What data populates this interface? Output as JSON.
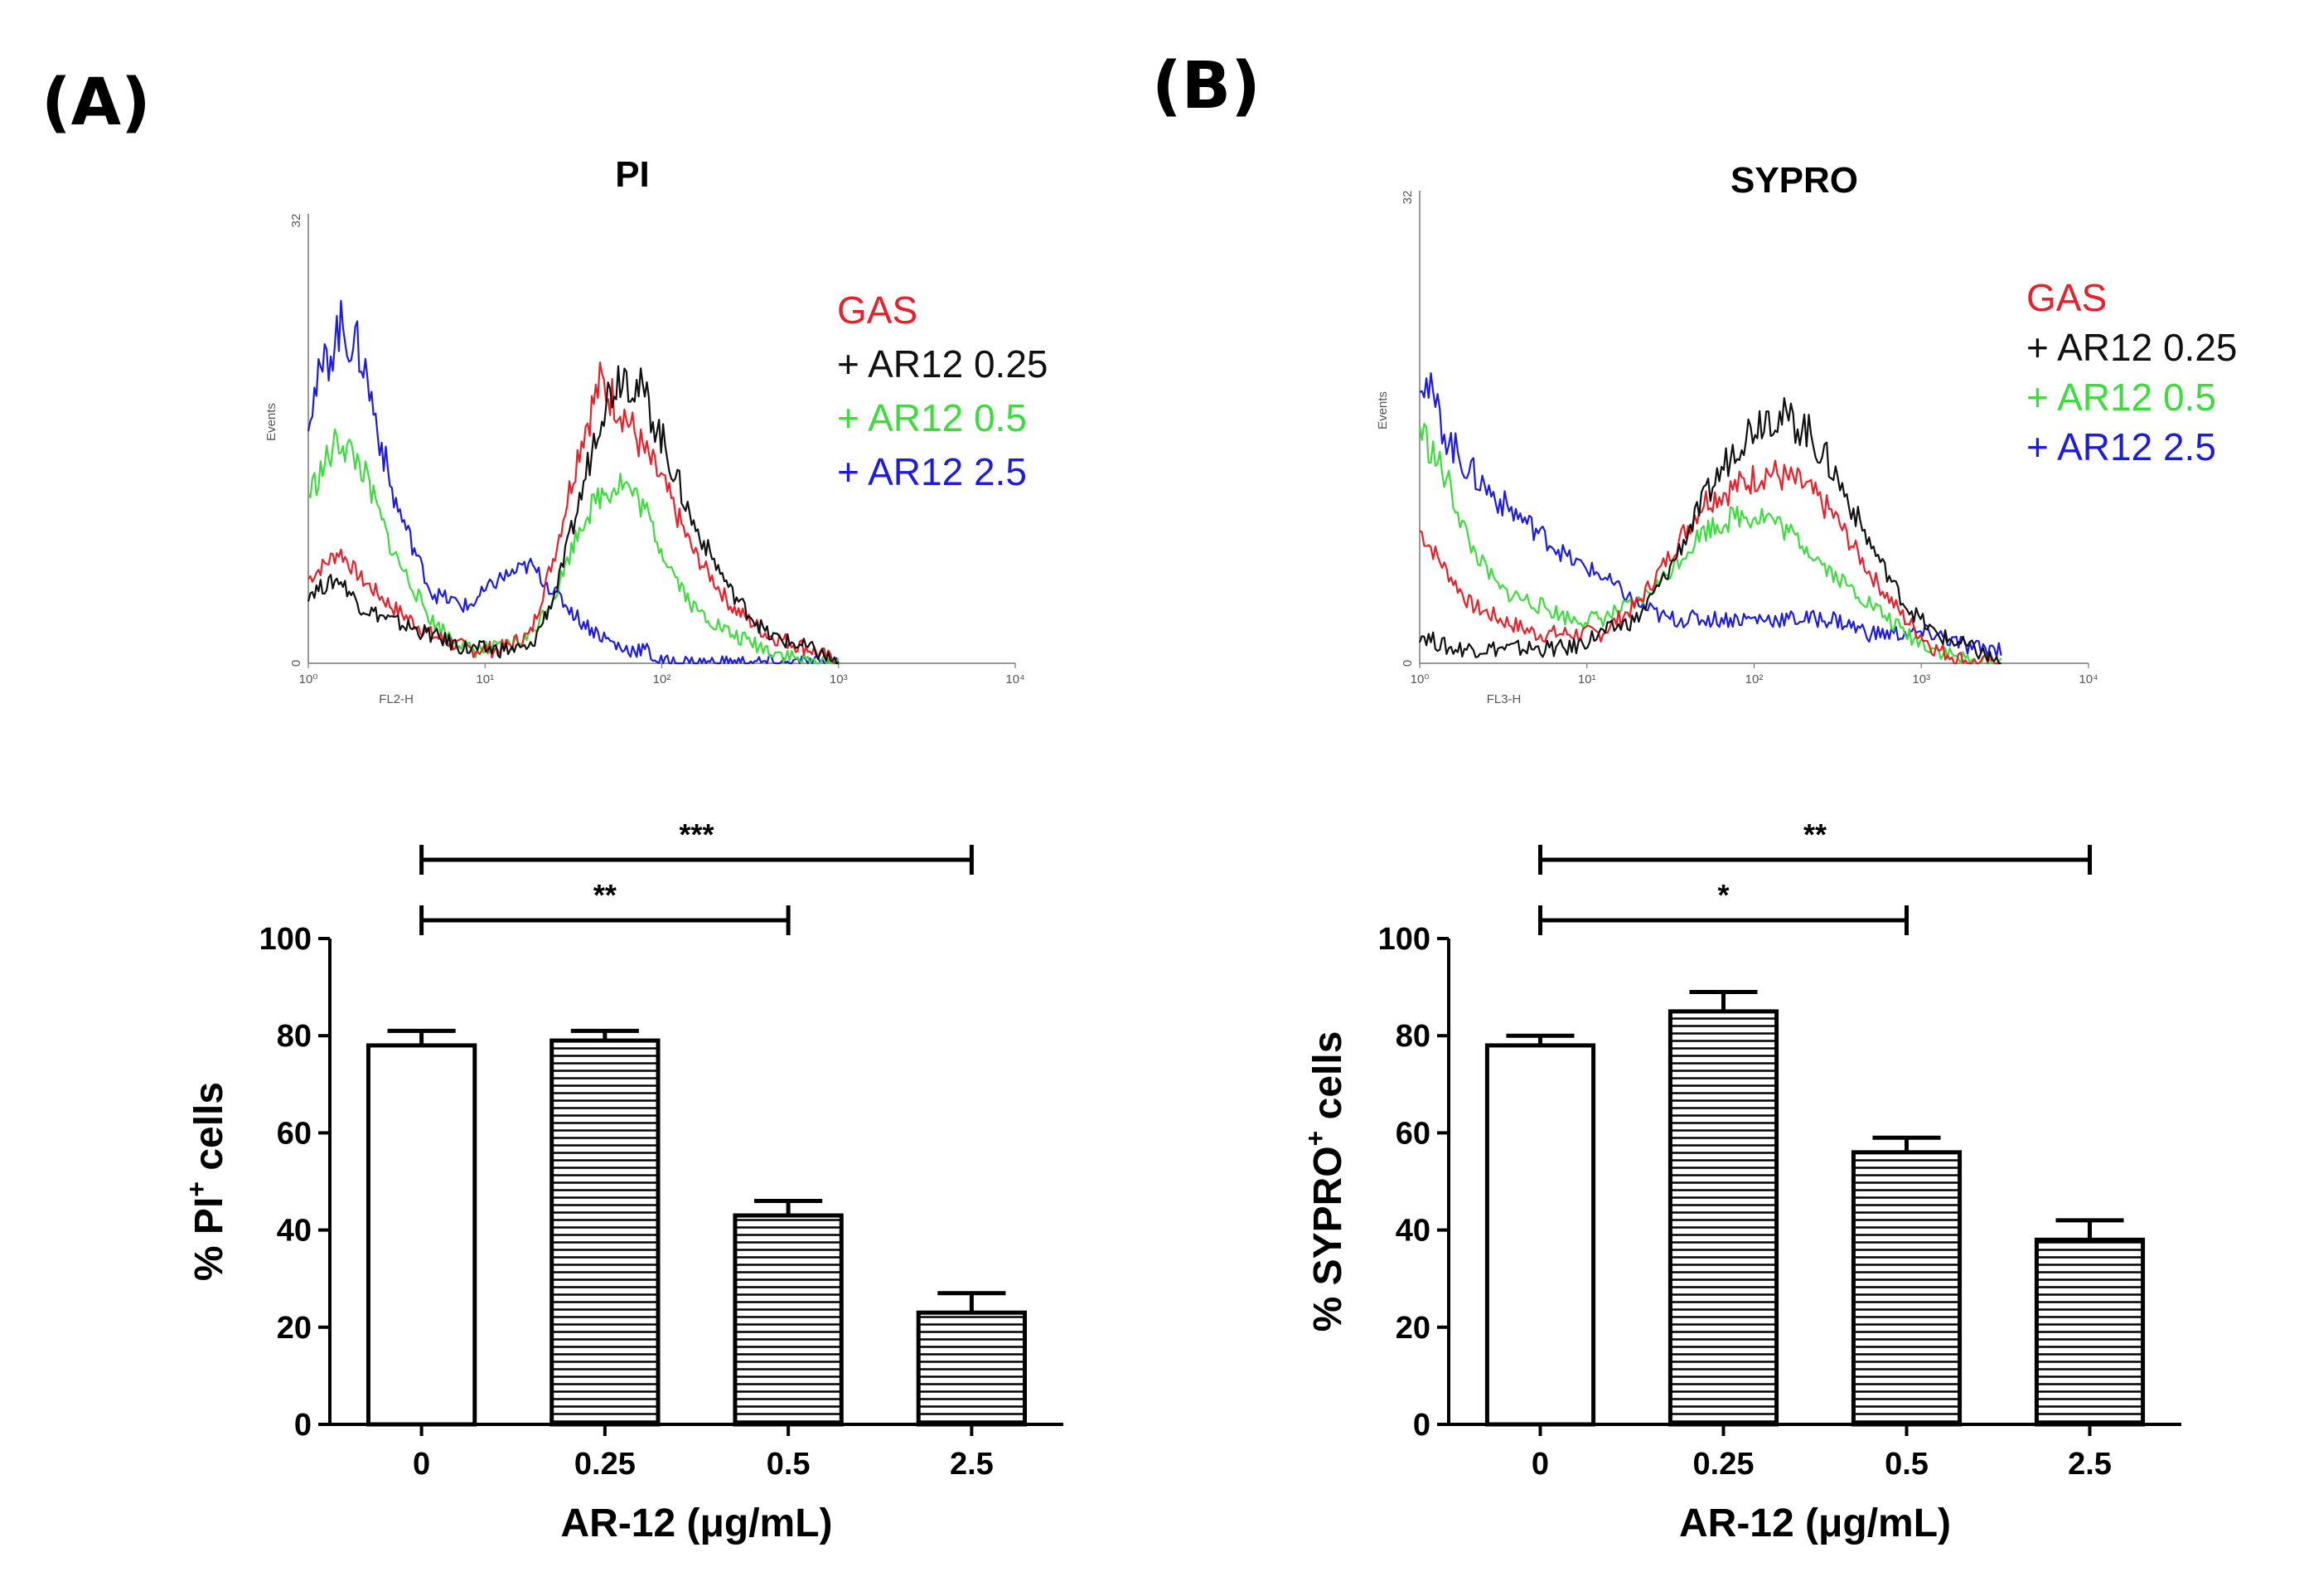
{
  "figure": {
    "panels": [
      {
        "label": "(A)",
        "histogram": {
          "title": "PI",
          "xlabel": "FL2-H",
          "ylabel": "Events",
          "y_top_tick": "32",
          "y_bottom_tick": "0",
          "x_ticks": [
            "10⁰",
            "10¹",
            "10²",
            "10³",
            "10⁴"
          ],
          "legend": [
            {
              "text": "GAS",
              "color": "#e8202a"
            },
            {
              "text": "+ AR12 0.25",
              "color": "#111111"
            },
            {
              "text": "+ AR12 0.5",
              "color": "#3ddc3d"
            },
            {
              "text": "+ AR12 2.5",
              "color": "#1c1ce0"
            }
          ]
        },
        "bar_chart": {
          "ylabel_prefix": "% PI",
          "ylabel_sup": "+",
          "ylabel_suffix": " cells",
          "xlabel": "AR-12 (μg/mL)",
          "significance": [
            {
              "from": 0,
              "to": 3,
              "label": "***"
            },
            {
              "from": 0,
              "to": 2,
              "label": "**"
            }
          ]
        }
      },
      {
        "label": "(B)",
        "histogram": {
          "title": "SYPRO",
          "xlabel": "FL3-H",
          "ylabel": "Events",
          "y_top_tick": "32",
          "y_bottom_tick": "0",
          "x_ticks": [
            "10⁰",
            "10¹",
            "10²",
            "10³",
            "10⁴"
          ],
          "legend": [
            {
              "text": "GAS",
              "color": "#e8202a"
            },
            {
              "text": "+ AR12 0.25",
              "color": "#111111"
            },
            {
              "text": "+ AR12 0.5",
              "color": "#3ddc3d"
            },
            {
              "text": "+ AR12 2.5",
              "color": "#1c1ce0"
            }
          ]
        },
        "bar_chart": {
          "ylabel_prefix": "% SYPRO",
          "ylabel_sup": "+",
          "ylabel_suffix": " cells",
          "xlabel": "AR-12 (μg/mL)",
          "significance": [
            {
              "from": 0,
              "to": 3,
              "label": "**"
            },
            {
              "from": 0,
              "to": 2,
              "label": "*"
            }
          ]
        }
      }
    ]
  },
  "chart_data": [
    {
      "type": "area",
      "title": "PI",
      "xlabel": "FL2-H",
      "ylabel": "Events",
      "x_scale": "log",
      "xlim": [
        1,
        10000
      ],
      "ylim": [
        0,
        32
      ],
      "series": [
        {
          "name": "GAS",
          "color": "#e8202a",
          "x": [
            1,
            1.5,
            2,
            3,
            5,
            8,
            12,
            18,
            25,
            35,
            45,
            60,
            80,
            100,
            150,
            250,
            400,
            700,
            1000
          ],
          "values": [
            6,
            8,
            6,
            4,
            2,
            1,
            1,
            2,
            8,
            16,
            20,
            18,
            15,
            13,
            8,
            4,
            2,
            1,
            0
          ]
        },
        {
          "name": "+ AR12 0.25",
          "color": "#111111",
          "x": [
            1,
            1.5,
            2,
            3,
            5,
            8,
            12,
            18,
            25,
            35,
            45,
            60,
            80,
            100,
            150,
            250,
            400,
            700,
            1000
          ],
          "values": [
            5,
            6,
            4,
            3,
            2,
            1,
            1,
            1,
            5,
            12,
            18,
            21,
            19,
            16,
            10,
            5,
            2,
            1,
            0
          ]
        },
        {
          "name": "+ AR12 0.5",
          "color": "#3ddc3d",
          "x": [
            1,
            1.5,
            2,
            3,
            5,
            8,
            12,
            18,
            25,
            35,
            45,
            60,
            80,
            100,
            150,
            250,
            400,
            700,
            1000
          ],
          "values": [
            12,
            16,
            14,
            8,
            3,
            1,
            1,
            2,
            5,
            10,
            12,
            13,
            11,
            8,
            4,
            2,
            1,
            0,
            0
          ]
        },
        {
          "name": "+ AR12 2.5",
          "color": "#1c1ce0",
          "x": [
            1,
            1.5,
            2,
            3,
            5,
            8,
            12,
            18,
            25,
            35,
            45,
            60,
            80,
            100,
            150,
            250,
            400,
            700,
            1000
          ],
          "values": [
            18,
            24,
            22,
            12,
            5,
            4,
            6,
            7,
            5,
            3,
            2,
            1,
            1,
            0,
            0,
            0,
            0,
            0,
            0
          ]
        }
      ]
    },
    {
      "type": "area",
      "title": "SYPRO",
      "xlabel": "FL3-H",
      "ylabel": "Events",
      "x_scale": "log",
      "xlim": [
        1,
        10000
      ],
      "ylim": [
        0,
        32
      ],
      "series": [
        {
          "name": "GAS",
          "color": "#e8202a",
          "x": [
            1,
            1.5,
            2,
            3,
            5,
            8,
            12,
            20,
            30,
            50,
            80,
            120,
            200,
            300,
            500,
            800,
            1200,
            2000,
            3000
          ],
          "values": [
            9,
            6,
            4,
            3,
            2,
            2,
            2,
            4,
            7,
            11,
            12,
            13,
            12,
            10,
            6,
            3,
            1,
            0,
            0
          ]
        },
        {
          "name": "+ AR12 0.25",
          "color": "#111111",
          "x": [
            1,
            1.5,
            2,
            3,
            5,
            8,
            12,
            20,
            30,
            50,
            80,
            120,
            200,
            300,
            500,
            800,
            1200,
            2000,
            3000
          ],
          "values": [
            2,
            1,
            1,
            1,
            1,
            1,
            2,
            3,
            6,
            11,
            15,
            17,
            16,
            13,
            8,
            4,
            2,
            1,
            0
          ]
        },
        {
          "name": "+ AR12 0.5",
          "color": "#3ddc3d",
          "x": [
            1,
            1.5,
            2,
            3,
            5,
            8,
            12,
            20,
            30,
            50,
            80,
            120,
            200,
            300,
            500,
            800,
            1200,
            2000,
            3000
          ],
          "values": [
            16,
            12,
            8,
            5,
            4,
            3,
            3,
            4,
            6,
            9,
            10,
            10,
            8,
            6,
            4,
            2,
            1,
            0,
            0
          ]
        },
        {
          "name": "+ AR12 2.5",
          "color": "#1c1ce0",
          "x": [
            1,
            1.5,
            2,
            3,
            5,
            8,
            12,
            20,
            30,
            50,
            80,
            120,
            200,
            300,
            500,
            800,
            1200,
            2000,
            3000
          ],
          "values": [
            20,
            15,
            13,
            11,
            9,
            7,
            6,
            4,
            3,
            3,
            3,
            3,
            3,
            3,
            2,
            2,
            2,
            1,
            1
          ]
        }
      ]
    },
    {
      "type": "bar",
      "categories": [
        "0",
        "0.25",
        "0.5",
        "2.5"
      ],
      "values": [
        78,
        79,
        43,
        23
      ],
      "errors": [
        3,
        2,
        3,
        4
      ],
      "patterns": [
        "open",
        "hatched",
        "hatched",
        "hatched"
      ],
      "xlabel": "AR-12 (μg/mL)",
      "ylabel": "% PI+ cells",
      "ylim": [
        0,
        100
      ],
      "yticks": [
        0,
        20,
        40,
        60,
        80,
        100
      ]
    },
    {
      "type": "bar",
      "categories": [
        "0",
        "0.25",
        "0.5",
        "2.5"
      ],
      "values": [
        78,
        85,
        56,
        38
      ],
      "errors": [
        2,
        4,
        3,
        4
      ],
      "patterns": [
        "open",
        "hatched",
        "hatched",
        "hatched"
      ],
      "xlabel": "AR-12 (μg/mL)",
      "ylabel": "% SYPRO+ cells",
      "ylim": [
        0,
        100
      ],
      "yticks": [
        0,
        20,
        40,
        60,
        80,
        100
      ]
    }
  ]
}
